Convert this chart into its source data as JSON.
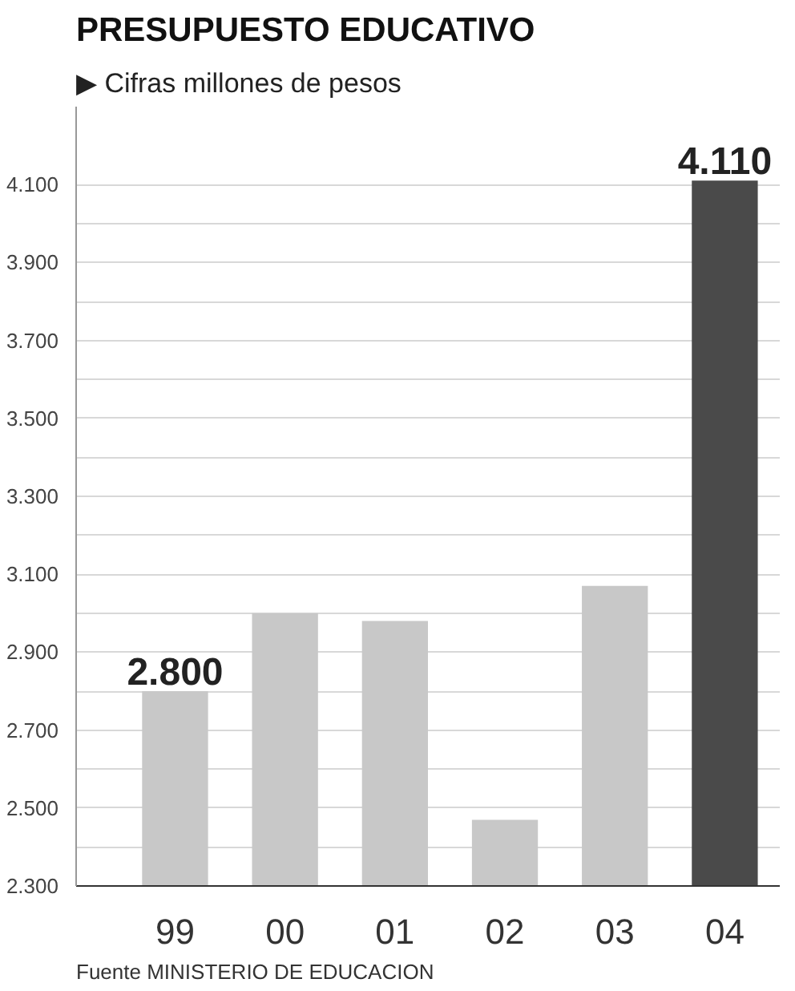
{
  "chart_data": {
    "type": "bar",
    "title": "PRESUPUESTO EDUCATIVO",
    "subtitle": "▶ Cifras millones de pesos",
    "categories": [
      "99",
      "00",
      "01",
      "02",
      "03",
      "04"
    ],
    "values": [
      2800,
      3000,
      2980,
      2470,
      3070,
      4110
    ],
    "colors": [
      "#c8c8c8",
      "#c8c8c8",
      "#c8c8c8",
      "#c8c8c8",
      "#c8c8c8",
      "#4a4a4a"
    ],
    "value_labels": [
      "2.800",
      null,
      null,
      null,
      null,
      "4.110"
    ],
    "ylim": [
      2300,
      4300
    ],
    "yticks": [
      {
        "value": 2300,
        "label": "2.300"
      },
      {
        "value": 2400,
        "label": null
      },
      {
        "value": 2500,
        "label": "2.500"
      },
      {
        "value": 2600,
        "label": null
      },
      {
        "value": 2700,
        "label": "2.700"
      },
      {
        "value": 2800,
        "label": null
      },
      {
        "value": 2900,
        "label": "2.900"
      },
      {
        "value": 3000,
        "label": null
      },
      {
        "value": 3100,
        "label": "3.100"
      },
      {
        "value": 3200,
        "label": null
      },
      {
        "value": 3300,
        "label": "3.300"
      },
      {
        "value": 3400,
        "label": null
      },
      {
        "value": 3500,
        "label": "3.500"
      },
      {
        "value": 3600,
        "label": null
      },
      {
        "value": 3700,
        "label": "3.700"
      },
      {
        "value": 3800,
        "label": null
      },
      {
        "value": 3900,
        "label": "3.900"
      },
      {
        "value": 4000,
        "label": null
      },
      {
        "value": 4100,
        "label": "4.100"
      }
    ],
    "grid": "y",
    "annotations": [
      "Fuente MINISTERIO DE EDUCACION"
    ]
  }
}
